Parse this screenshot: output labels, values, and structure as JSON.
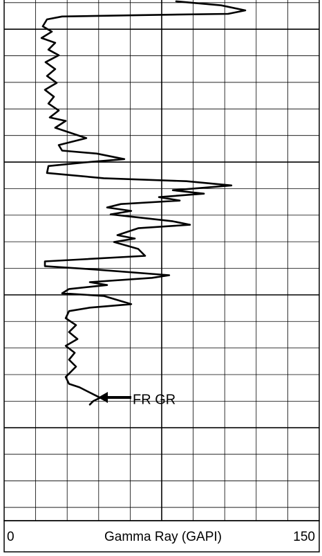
{
  "chart_data": {
    "type": "line",
    "xlabel": "Gamma Ray (GAPI)",
    "annotation": "FR GR",
    "xlim": [
      0,
      150
    ],
    "xticks": [
      0,
      15,
      30,
      45,
      60,
      75,
      90,
      105,
      120,
      135,
      150
    ],
    "ylim": [
      -0.1,
      19.5
    ],
    "yticks": [
      0,
      1,
      2,
      3,
      4,
      5,
      6,
      7,
      8,
      9,
      10,
      11,
      12,
      13,
      14,
      15,
      16,
      17,
      18,
      19
    ],
    "grid": true,
    "series": [
      {
        "color": "#000000",
        "values": [
          81.9,
          103.3,
          114.8,
          106.6,
          63.8,
          27.6,
          20.4,
          18.4,
          22.7,
          17.8,
          24.3,
          21.1,
          26.0,
          19.7,
          24.3,
          20.4,
          25.0,
          19.4,
          23.7,
          21.1,
          26.0,
          21.7,
          29.3,
          24.3,
          34.2,
          39.1,
          26.0,
          27.6,
          44.1,
          57.2,
          37.5,
          21.1,
          20.4,
          47.4,
          86.8,
          108.2,
          93.4,
          80.3,
          95.1,
          73.7,
          83.6,
          55.6,
          49.0,
          60.5,
          50.7,
          80.3,
          88.5,
          63.8,
          53.9,
          62.2,
          52.3,
          63.8,
          67.1,
          37.5,
          19.4,
          19.4,
          44.1,
          78.6,
          70.4,
          40.8,
          49.0,
          30.9,
          27.6,
          47.4,
          60.5,
          40.8,
          30.9,
          29.3,
          34.2,
          30.9,
          34.9,
          29.3,
          33.6,
          30.9,
          34.2,
          29.3,
          30.9,
          35.9,
          39.1,
          45.7,
          42.4,
          40.8
        ],
        "depth": [
          -0.05,
          0.1,
          0.29,
          0.42,
          0.47,
          0.52,
          0.63,
          0.89,
          1.09,
          1.33,
          1.51,
          1.77,
          1.98,
          2.24,
          2.5,
          2.76,
          3.02,
          3.28,
          3.54,
          3.8,
          4.06,
          4.32,
          4.45,
          4.71,
          4.97,
          5.1,
          5.36,
          5.57,
          5.68,
          5.89,
          6.02,
          6.15,
          6.41,
          6.61,
          6.72,
          6.88,
          6.98,
          7.06,
          7.19,
          7.32,
          7.45,
          7.58,
          7.71,
          7.84,
          7.97,
          8.23,
          8.36,
          8.49,
          8.75,
          8.88,
          9.01,
          9.27,
          9.53,
          9.66,
          9.74,
          9.92,
          10.05,
          10.26,
          10.36,
          10.52,
          10.63,
          10.78,
          10.94,
          11.04,
          11.35,
          11.48,
          11.61,
          11.88,
          12.14,
          12.4,
          12.66,
          12.92,
          13.18,
          13.44,
          13.7,
          14.09,
          14.35,
          14.48,
          14.61,
          14.87,
          15.0,
          15.13
        ]
      }
    ]
  }
}
